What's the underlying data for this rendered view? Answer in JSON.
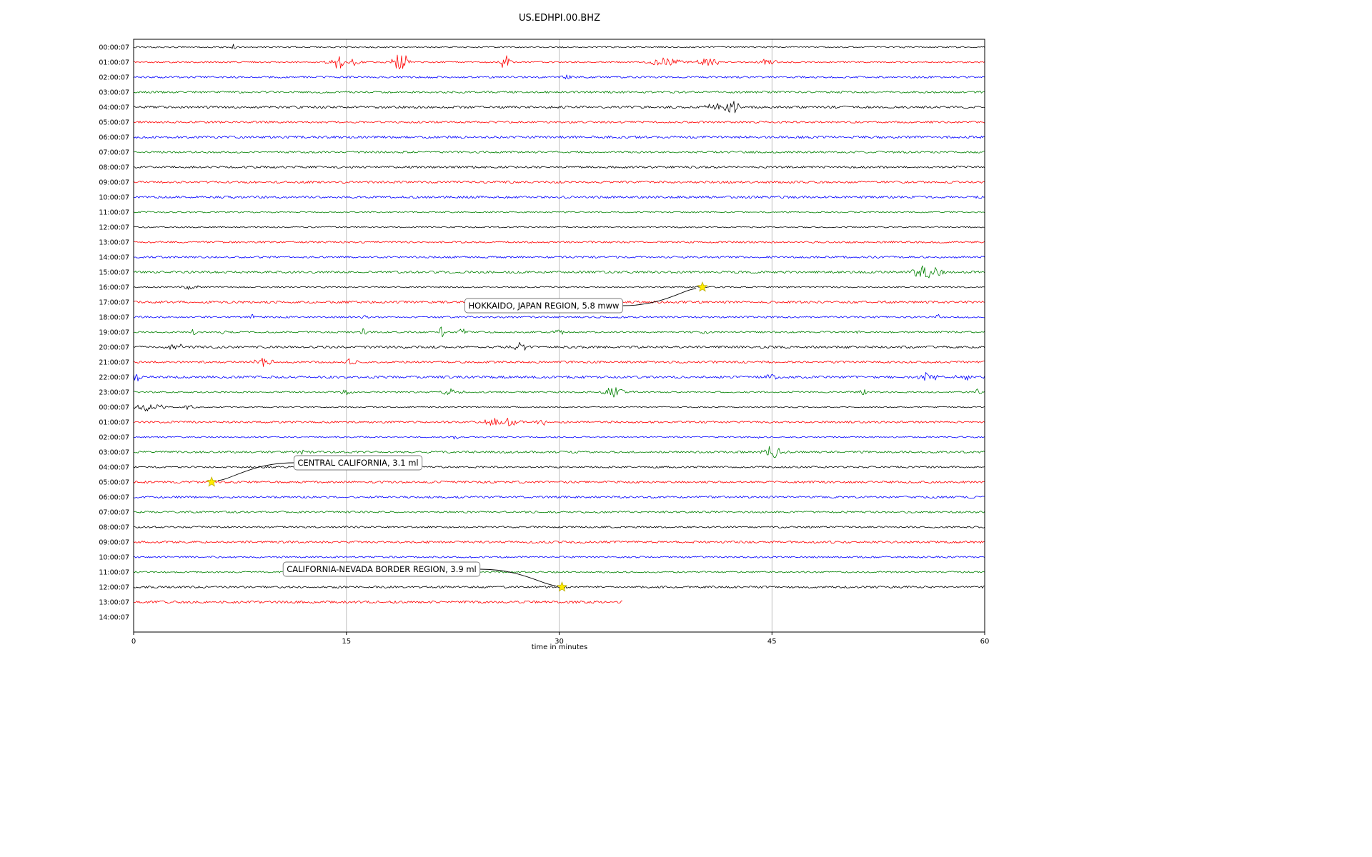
{
  "chart_data": {
    "type": "line",
    "subtype": "seismogram_helicorder",
    "title": "US.EDHPI.00.BHZ",
    "xlabel": "time in minutes",
    "xlim": [
      0,
      60
    ],
    "x_ticks": [
      0,
      15,
      30,
      45,
      60
    ],
    "grid": "vertical gridlines at 15, 30, 45",
    "trace_colors_cycle": [
      "#000000",
      "#ff0000",
      "#0000ff",
      "#008000"
    ],
    "rows": [
      {
        "label": "00:00:07",
        "color": "#000000",
        "bursts": [
          {
            "m": 7,
            "a": 5,
            "w": 0.15
          }
        ]
      },
      {
        "label": "01:00:07",
        "color": "#ff0000",
        "bursts": [
          {
            "m": 14.5,
            "a": 9,
            "w": 0.5
          },
          {
            "m": 15.6,
            "a": 7,
            "w": 0.3
          },
          {
            "m": 18.8,
            "a": 14,
            "w": 0.4
          },
          {
            "m": 26.2,
            "a": 12,
            "w": 0.25
          },
          {
            "m": 37.5,
            "a": 6,
            "w": 0.8
          },
          {
            "m": 40.5,
            "a": 7,
            "w": 0.5
          },
          {
            "m": 44.8,
            "a": 6,
            "w": 0.4
          }
        ],
        "note": "noisiest hour, multiple bursts"
      },
      {
        "label": "02:00:07",
        "color": "#0000ff",
        "bursts": [
          {
            "m": 30.5,
            "a": 6,
            "w": 0.2
          }
        ]
      },
      {
        "label": "03:00:07",
        "color": "#008000",
        "bursts": []
      },
      {
        "label": "04:00:07",
        "color": "#000000",
        "bursts": [
          {
            "m": 41,
            "a": 5,
            "w": 0.5
          },
          {
            "m": 42.2,
            "a": 9,
            "w": 0.4
          }
        ]
      },
      {
        "label": "05:00:07",
        "color": "#ff0000",
        "bursts": []
      },
      {
        "label": "06:00:07",
        "color": "#0000ff",
        "bursts": []
      },
      {
        "label": "07:00:07",
        "color": "#008000",
        "bursts": []
      },
      {
        "label": "08:00:07",
        "color": "#000000",
        "bursts": []
      },
      {
        "label": "09:00:07",
        "color": "#ff0000",
        "bursts": []
      },
      {
        "label": "10:00:07",
        "color": "#0000ff",
        "bursts": []
      },
      {
        "label": "11:00:07",
        "color": "#008000",
        "bursts": []
      },
      {
        "label": "12:00:07",
        "color": "#000000",
        "bursts": []
      },
      {
        "label": "13:00:07",
        "color": "#ff0000",
        "bursts": []
      },
      {
        "label": "14:00:07",
        "color": "#0000ff",
        "bursts": []
      },
      {
        "label": "15:00:07",
        "color": "#008000",
        "bursts": [
          {
            "m": 55.5,
            "a": 8,
            "w": 0.6
          },
          {
            "m": 56.6,
            "a": 6,
            "w": 0.4
          }
        ]
      },
      {
        "label": "16:00:07",
        "color": "#000000",
        "bursts": [
          {
            "m": 4,
            "a": 5,
            "w": 0.4
          },
          {
            "m": 40.1,
            "a": 2,
            "w": 0.3
          },
          {
            "m": 46,
            "a": 3,
            "w": 0.1
          }
        ]
      },
      {
        "label": "17:00:07",
        "color": "#ff0000",
        "bursts": [
          {
            "m": 42.5,
            "a": 4,
            "w": 0.15
          },
          {
            "m": 53,
            "a": 4,
            "w": 0.1
          }
        ]
      },
      {
        "label": "18:00:07",
        "color": "#0000ff",
        "bursts": [
          {
            "m": 8.3,
            "a": 4,
            "w": 0.15
          },
          {
            "m": 16.2,
            "a": 5,
            "w": 0.15
          },
          {
            "m": 56.7,
            "a": 4,
            "w": 0.15
          }
        ]
      },
      {
        "label": "19:00:07",
        "color": "#008000",
        "bursts": [
          {
            "m": 4.2,
            "a": 5,
            "w": 0.15
          },
          {
            "m": 6.3,
            "a": 4,
            "w": 0.15
          },
          {
            "m": 16.2,
            "a": 6,
            "w": 0.15
          },
          {
            "m": 21.7,
            "a": 8,
            "w": 0.2
          },
          {
            "m": 23.2,
            "a": 7,
            "w": 0.15
          },
          {
            "m": 30,
            "a": 4,
            "w": 0.3
          },
          {
            "m": 40.3,
            "a": 4,
            "w": 0.2
          },
          {
            "m": 51,
            "a": 3,
            "w": 0.15
          }
        ]
      },
      {
        "label": "20:00:07",
        "color": "#000000",
        "bursts": [
          {
            "m": 3,
            "a": 4,
            "w": 0.5
          },
          {
            "m": 27.3,
            "a": 6,
            "w": 0.3
          }
        ]
      },
      {
        "label": "21:00:07",
        "color": "#ff0000",
        "bursts": [
          {
            "m": 9,
            "a": 6,
            "w": 0.5
          },
          {
            "m": 15.3,
            "a": 5,
            "w": 0.3
          }
        ]
      },
      {
        "label": "22:00:07",
        "color": "#0000ff",
        "bursts": [
          {
            "m": 0.3,
            "a": 6,
            "w": 0.4
          },
          {
            "m": 45,
            "a": 5,
            "w": 0.3
          },
          {
            "m": 56,
            "a": 7,
            "w": 0.5
          },
          {
            "m": 58.5,
            "a": 5,
            "w": 0.3
          }
        ]
      },
      {
        "label": "23:00:07",
        "color": "#008000",
        "bursts": [
          {
            "m": 15,
            "a": 5,
            "w": 0.3
          },
          {
            "m": 22.5,
            "a": 5,
            "w": 0.5
          },
          {
            "m": 33.8,
            "a": 7,
            "w": 0.6
          },
          {
            "m": 51.5,
            "a": 4,
            "w": 0.2
          },
          {
            "m": 59.5,
            "a": 4,
            "w": 0.2
          }
        ]
      },
      {
        "label": "00:00:07",
        "color": "#000000",
        "bursts": [
          {
            "m": 1,
            "a": 5,
            "w": 0.8
          },
          {
            "m": 4,
            "a": 4,
            "w": 0.3
          }
        ]
      },
      {
        "label": "01:00:07",
        "color": "#ff0000",
        "bursts": [
          {
            "m": 25.3,
            "a": 8,
            "w": 0.4
          },
          {
            "m": 26.5,
            "a": 6,
            "w": 0.5
          },
          {
            "m": 28.8,
            "a": 6,
            "w": 0.2
          }
        ]
      },
      {
        "label": "02:00:07",
        "color": "#0000ff",
        "bursts": [
          {
            "m": 22.7,
            "a": 3,
            "w": 0.2
          },
          {
            "m": 44,
            "a": 3,
            "w": 0.15
          }
        ]
      },
      {
        "label": "03:00:07",
        "color": "#008000",
        "bursts": [
          {
            "m": 12,
            "a": 3,
            "w": 0.3
          },
          {
            "m": 45,
            "a": 10,
            "w": 0.5
          }
        ]
      },
      {
        "label": "04:00:07",
        "color": "#000000",
        "bursts": []
      },
      {
        "label": "05:00:07",
        "color": "#ff0000",
        "bursts": [
          {
            "m": 5.5,
            "a": 2,
            "w": 0.2
          }
        ]
      },
      {
        "label": "06:00:07",
        "color": "#0000ff",
        "bursts": []
      },
      {
        "label": "07:00:07",
        "color": "#008000",
        "bursts": []
      },
      {
        "label": "08:00:07",
        "color": "#000000",
        "bursts": []
      },
      {
        "label": "09:00:07",
        "color": "#ff0000",
        "bursts": []
      },
      {
        "label": "10:00:07",
        "color": "#0000ff",
        "bursts": []
      },
      {
        "label": "11:00:07",
        "color": "#008000",
        "bursts": []
      },
      {
        "label": "12:00:07",
        "color": "#000000",
        "bursts": [
          {
            "m": 30.2,
            "a": 2,
            "w": 0.2
          }
        ]
      },
      {
        "label": "13:00:07",
        "color": "#ff0000",
        "bursts": [],
        "end_minute": 34.5,
        "note": "partial trace, recording stops mid-hour"
      },
      {
        "label": "14:00:07",
        "color": null,
        "has_trace": false,
        "bursts": []
      }
    ],
    "events": [
      {
        "label": "HOKKAIDO, JAPAN REGION, 5.8 mww",
        "row_label": "16:00:07",
        "row_index": 16,
        "x_minutes": 40.1,
        "marker": "yellow-star"
      },
      {
        "label": "CENTRAL CALIFORNIA, 3.1 ml",
        "row_label": "05:00:07",
        "row_index": 29,
        "x_minutes": 5.5,
        "marker": "yellow-star"
      },
      {
        "label": "CALIFORNIA-NEVADA BORDER REGION, 3.9 ml",
        "row_label": "12:00:07",
        "row_index": 36,
        "x_minutes": 30.2,
        "marker": "yellow-star"
      }
    ],
    "colors": {
      "grid": "#b0b0b0",
      "border": "#000000",
      "event_star_fill": "#ffeb00",
      "annotation_box_border": "#777777",
      "annotation_box_fill": "#ffffff"
    }
  }
}
